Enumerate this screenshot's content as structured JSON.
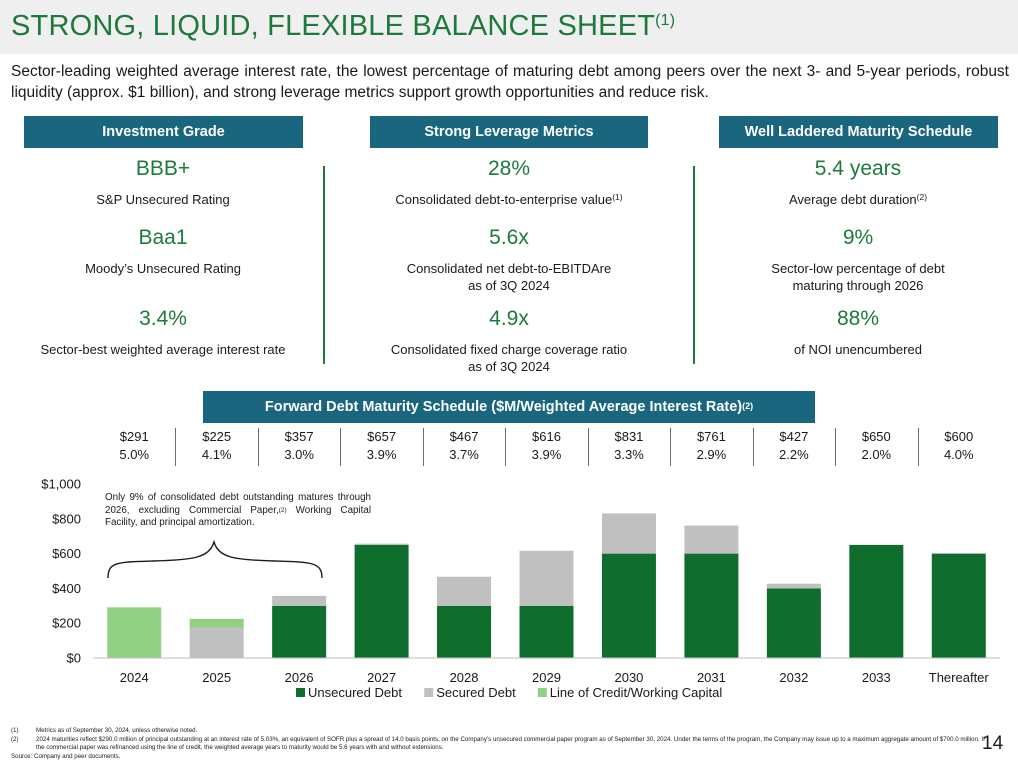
{
  "header": {
    "title": "STRONG, LIQUID, FLEXIBLE BALANCE SHEET",
    "title_sup": "(1)",
    "subtitle": "Sector-leading weighted average interest rate, the lowest percentage of maturing debt among peers over the next 3- and 5-year periods, robust liquidity (approx. $1 billion), and strong leverage metrics support growth opportunities and reduce risk."
  },
  "sections": [
    {
      "header": "Investment Grade",
      "metrics": [
        {
          "value": "BBB+",
          "desc": "S&P Unsecured Rating",
          "sup": "",
          "desc2": ""
        },
        {
          "value": "Baa1",
          "desc": "Moody’s Unsecured Rating",
          "sup": "",
          "desc2": ""
        },
        {
          "value": "3.4%",
          "desc": "Sector-best weighted average interest rate",
          "sup": "",
          "desc2": ""
        }
      ]
    },
    {
      "header": "Strong Leverage Metrics",
      "metrics": [
        {
          "value": "28%",
          "desc": "Consolidated debt-to-enterprise value",
          "sup": "(1)",
          "desc2": ""
        },
        {
          "value": "5.6x",
          "desc": "Consolidated net debt-to-EBITDAre",
          "sup": "",
          "desc2": "as of 3Q 2024"
        },
        {
          "value": "4.9x",
          "desc": "Consolidated fixed charge coverage ratio",
          "sup": "",
          "desc2": "as of 3Q 2024"
        }
      ]
    },
    {
      "header": "Well Laddered Maturity Schedule",
      "metrics": [
        {
          "value": "5.4 years",
          "desc": "Average debt duration",
          "sup": "(2)",
          "desc2": ""
        },
        {
          "value": "9%",
          "desc": "Sector-low percentage of debt",
          "sup": "",
          "desc2": "maturing through 2026"
        },
        {
          "value": "88%",
          "desc": "of NOI unencumbered",
          "sup": "",
          "desc2": ""
        }
      ]
    }
  ],
  "forward_header": {
    "label": "Forward Debt Maturity Schedule ($M/Weighted Average Interest Rate)",
    "sup": "(2)"
  },
  "schedule": [
    {
      "amount": "$291",
      "rate": "5.0%"
    },
    {
      "amount": "$225",
      "rate": "4.1%"
    },
    {
      "amount": "$357",
      "rate": "3.0%"
    },
    {
      "amount": "$657",
      "rate": "3.9%"
    },
    {
      "amount": "$467",
      "rate": "3.7%"
    },
    {
      "amount": "$616",
      "rate": "3.9%"
    },
    {
      "amount": "$831",
      "rate": "3.3%"
    },
    {
      "amount": "$761",
      "rate": "2.9%"
    },
    {
      "amount": "$427",
      "rate": "2.2%"
    },
    {
      "amount": "$650",
      "rate": "2.0%"
    },
    {
      "amount": "$600",
      "rate": "4.0%"
    }
  ],
  "annotation": {
    "text1": "Only 9% of consolidated debt outstanding matures through 2026, excluding Commercial Paper,",
    "sup": "(2)",
    "text2": " Working Capital Facility, and principal amortization."
  },
  "chart_data": {
    "type": "bar",
    "stacked": true,
    "categories": [
      "2024",
      "2025",
      "2026",
      "2027",
      "2028",
      "2029",
      "2030",
      "2031",
      "2032",
      "2033",
      "Thereafter"
    ],
    "series": [
      {
        "name": "Unsecured Debt",
        "color": "#0f6e2d",
        "values": [
          0,
          0,
          300,
          650,
          300,
          300,
          600,
          600,
          400,
          650,
          600
        ]
      },
      {
        "name": "Secured Debt",
        "color": "#c0c0c0",
        "values": [
          0,
          175,
          57,
          7,
          167,
          316,
          231,
          161,
          27,
          0,
          0
        ]
      },
      {
        "name": "Line of Credit/Working Capital",
        "color": "#92d183",
        "values": [
          291,
          50,
          0,
          0,
          0,
          0,
          0,
          0,
          0,
          0,
          0
        ]
      }
    ],
    "yticks": [
      "$0",
      "$200",
      "$400",
      "$600",
      "$800",
      "$1,000"
    ],
    "ylim": [
      0,
      1000
    ],
    "legend_position": "bottom-center"
  },
  "footnotes": [
    {
      "num": "(1)",
      "text": "Metrics as of September 30, 2024, unless otherwise noted."
    },
    {
      "num": "(2)",
      "text": "2024 maturities reflect $290.0 million of principal outstanding at an interest rate of 5.03%, an equivalent of SOFR plus a spread of 14.0 basis points, on the Company’s unsecured commercial paper program as of September 30, 2024. Under the terms of the program, the Company may issue up to a maximum aggregate amount of $700.0 million. If the commercial paper was refinanced using the line of credit, the weighted average years to maturity would be 5.6 years with and without extensions."
    }
  ],
  "source": "Source: Company and peer documents.",
  "page_number": "14"
}
